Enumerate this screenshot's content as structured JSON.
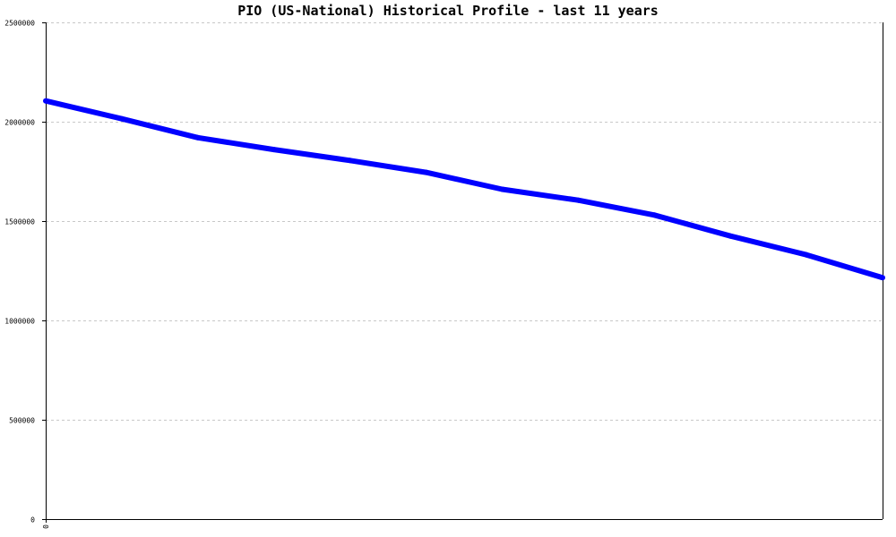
{
  "chart_data": {
    "type": "line",
    "title": "PIO (US-National) Historical Profile - last 11 years",
    "xlabel": "",
    "ylabel": "",
    "ylim": [
      0,
      2500000
    ],
    "yticks": [
      {
        "value": 0,
        "label": "0"
      },
      {
        "value": 500000,
        "label": "500000"
      },
      {
        "value": 1000000,
        "label": "1000000"
      },
      {
        "value": 1500000,
        "label": "1500000"
      },
      {
        "value": 2000000,
        "label": "2000000"
      },
      {
        "value": 2500000,
        "label": "2500000"
      }
    ],
    "xticks": [
      {
        "value": 0,
        "label": "0"
      }
    ],
    "grid": true,
    "series": [
      {
        "color": "#0000ff",
        "x": [
          0,
          1,
          2,
          3,
          4,
          5,
          6,
          7,
          8,
          9,
          10,
          11
        ],
        "y": [
          2105000,
          2015000,
          1920000,
          1860000,
          1805000,
          1745000,
          1660000,
          1605000,
          1530000,
          1425000,
          1330000,
          1215000
        ]
      }
    ]
  }
}
